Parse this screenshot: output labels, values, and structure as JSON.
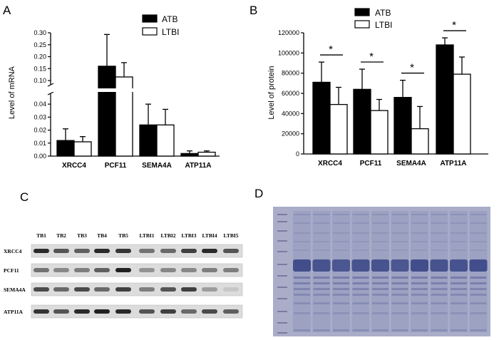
{
  "panels": {
    "a": "A",
    "b": "B",
    "c": "C",
    "d": "D"
  },
  "colors": {
    "atb": "#000000",
    "ltbi": "#ffffff",
    "gel_bg": "#a9adc8",
    "gel_band": "#3d4a88"
  },
  "chart_data": [
    {
      "id": "A",
      "type": "bar",
      "ylabel": "Level of mRNA",
      "categories": [
        "XRCC4",
        "PCF11",
        "SEMA4A",
        "ATP11A"
      ],
      "series": [
        {
          "name": "ATB",
          "values": [
            0.012,
            0.16,
            0.024,
            0.002
          ],
          "errors": [
            0.009,
            0.133,
            0.016,
            0.002
          ]
        },
        {
          "name": "LTBI",
          "values": [
            0.011,
            0.115,
            0.024,
            0.003
          ],
          "errors": [
            0.004,
            0.06,
            0.012,
            0.001
          ]
        }
      ],
      "broken_axis": true,
      "lower_ticks": [
        "0.00",
        "0.01",
        "0.02",
        "0.03",
        "0.04"
      ],
      "lower_tick_values": [
        0,
        0.01,
        0.02,
        0.03,
        0.04
      ],
      "upper_ticks": [
        "0.10",
        "0.15",
        "0.20",
        "0.25",
        "0.30"
      ],
      "upper_tick_values": [
        0.1,
        0.15,
        0.2,
        0.25,
        0.3
      ],
      "ylim_lower": [
        0,
        0.045
      ],
      "ylim_upper": [
        0.1,
        0.3
      ],
      "legend": [
        "ATB",
        "LTBI"
      ],
      "legend_position": "top-right",
      "grid": false
    },
    {
      "id": "B",
      "type": "bar",
      "ylabel": "Level of protein",
      "categories": [
        "XRCC4",
        "PCF11",
        "SEMA4A",
        "ATP11A"
      ],
      "series": [
        {
          "name": "ATB",
          "values": [
            71000,
            64000,
            56000,
            108000
          ],
          "errors": [
            20000,
            20000,
            17000,
            7000
          ]
        },
        {
          "name": "LTBI",
          "values": [
            49000,
            43000,
            25000,
            79000
          ],
          "errors": [
            17000,
            11000,
            22000,
            17000
          ]
        }
      ],
      "ticks": [
        "0",
        "20000",
        "40000",
        "60000",
        "80000",
        "100000",
        "120000"
      ],
      "ylim": [
        0,
        120000
      ],
      "significance": [
        "*",
        "*",
        "*",
        "*"
      ],
      "legend": [
        "ATB",
        "LTBI"
      ],
      "legend_position": "top",
      "grid": false
    }
  ],
  "western_blot": {
    "lanes": [
      "TB1",
      "TB2",
      "TB3",
      "TB4",
      "TB5",
      "LTBI1",
      "LTBI2",
      "LTBI3",
      "LTBI4",
      "LTBI5"
    ],
    "rows": [
      {
        "label": "XRCC4",
        "intensity": [
          0.9,
          0.7,
          0.65,
          0.9,
          0.85,
          0.55,
          0.6,
          0.8,
          0.9,
          0.7
        ]
      },
      {
        "label": "PCF11",
        "intensity": [
          0.55,
          0.45,
          0.5,
          0.65,
          0.95,
          0.4,
          0.45,
          0.45,
          0.5,
          0.5
        ]
      },
      {
        "label": "SEMA4A",
        "intensity": [
          0.75,
          0.6,
          0.75,
          0.6,
          0.8,
          0.5,
          0.7,
          0.8,
          0.35,
          0.15
        ]
      },
      {
        "label": "ATP11A",
        "intensity": [
          0.85,
          0.7,
          0.9,
          0.95,
          0.9,
          0.7,
          0.8,
          0.6,
          0.75,
          0.65
        ]
      }
    ]
  },
  "gel": {
    "lanes": 10,
    "main_band_intensity": [
      0.95,
      0.9,
      0.85,
      0.9,
      0.9,
      0.85,
      0.95,
      0.9,
      0.9,
      0.95
    ]
  }
}
